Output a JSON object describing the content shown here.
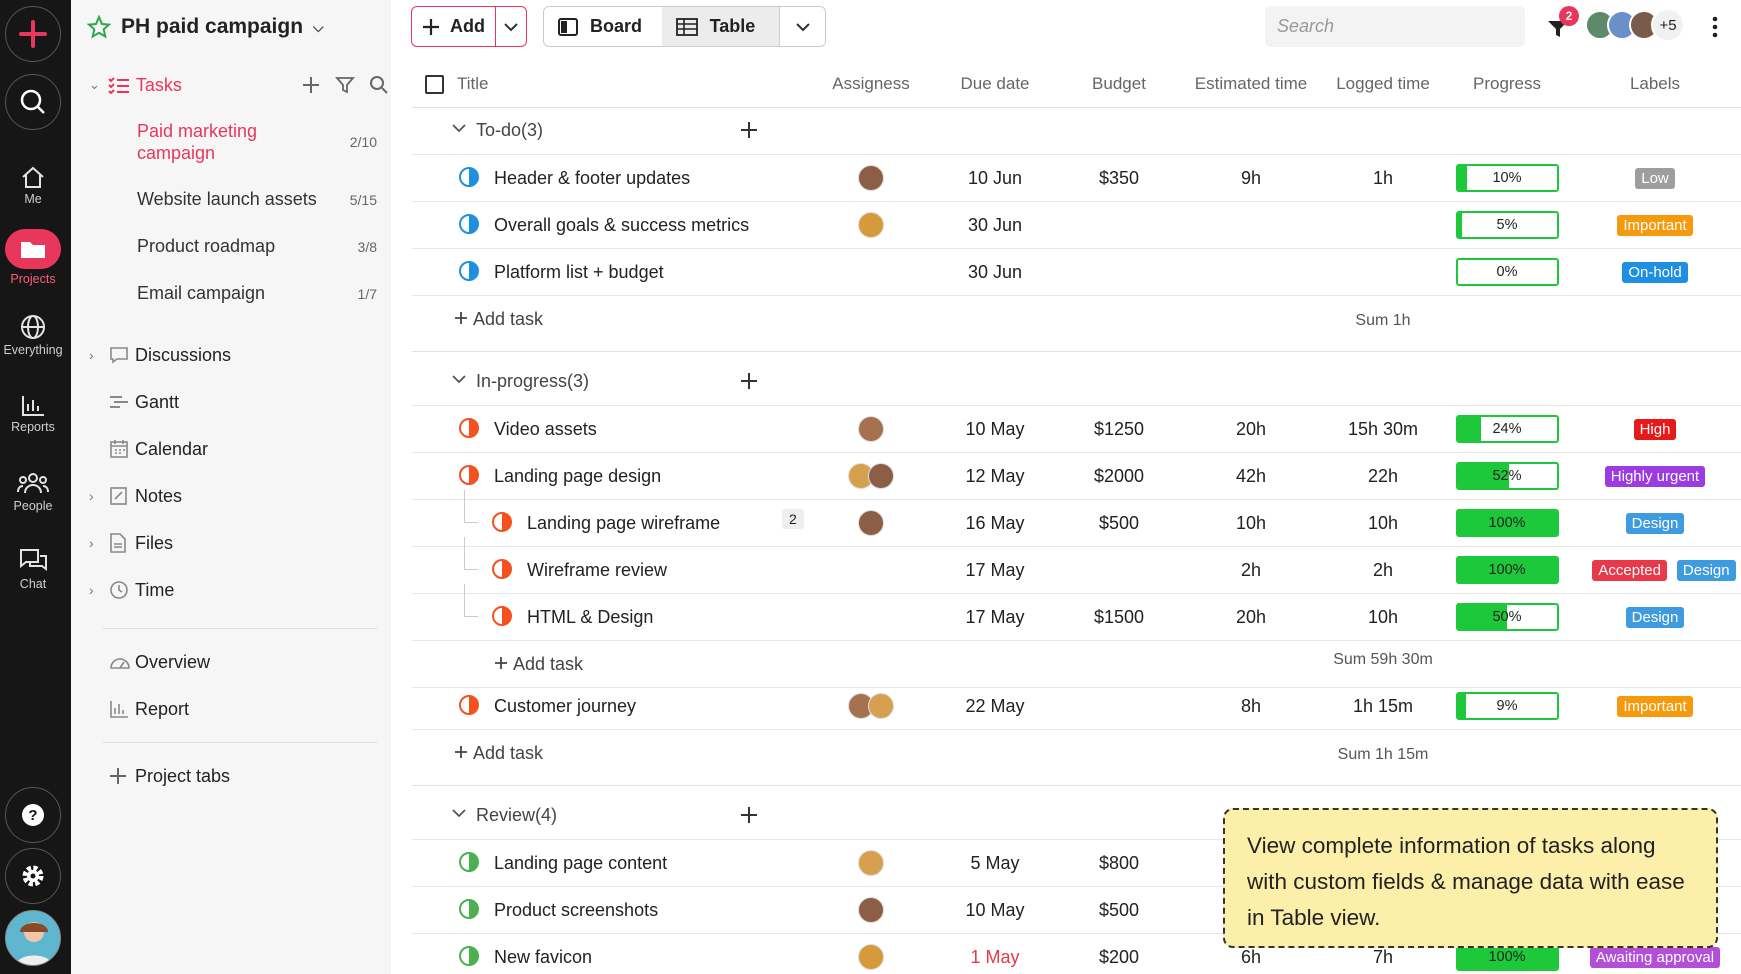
{
  "rail": {
    "me": "Me",
    "projects": "Projects",
    "everything": "Everything",
    "reports": "Reports",
    "people": "People",
    "chat": "Chat"
  },
  "sidebar": {
    "project_title": "PH paid campaign",
    "tasks_label": "Tasks",
    "task_lists": [
      {
        "name_line1": "Paid marketing",
        "name_line2": "campaign",
        "count": "2/10"
      },
      {
        "name": "Website launch assets",
        "count": "5/15"
      },
      {
        "name": "Product roadmap",
        "count": "3/8"
      },
      {
        "name": "Email campaign",
        "count": "1/7"
      }
    ],
    "nav": [
      "Discussions",
      "Gantt",
      "Calendar",
      "Notes",
      "Files",
      "Time"
    ],
    "overview": "Overview",
    "report": "Report",
    "project_tabs": "Project tabs"
  },
  "toolbar": {
    "add": "Add",
    "board": "Board",
    "table": "Table",
    "search_placeholder": "Search",
    "filter_badge": "2",
    "more_people": "+5"
  },
  "columns": [
    "Title",
    "Assigness",
    "Due date",
    "Budget",
    "Estimated time",
    "Logged time",
    "Progress",
    "Labels"
  ],
  "groups": [
    {
      "name": "To-do(3)",
      "sum": "Sum 1h",
      "add": "Add task",
      "tasks": [
        {
          "title": "Header & footer updates",
          "due": "10 Jun",
          "budget": "$350",
          "est": "9h",
          "logged": "1h",
          "progress": "10%",
          "pv": 10,
          "labels": [
            {
              "t": "Low",
              "c": "#9e9e9e"
            }
          ]
        },
        {
          "title": "Overall goals & success metrics",
          "due": "30 Jun",
          "budget": "",
          "est": "",
          "logged": "",
          "progress": "5%",
          "pv": 5,
          "labels": [
            {
              "t": "Important",
              "c": "#f59a0c"
            }
          ]
        },
        {
          "title": "Platform list + budget",
          "due": "30 Jun",
          "budget": "",
          "est": "",
          "logged": "",
          "progress": "0%",
          "pv": 0,
          "labels": [
            {
              "t": "On-hold",
              "c": "#1e8fe1"
            }
          ]
        }
      ]
    },
    {
      "name": "In-progress(3)",
      "sum": "Sum 59h 30m",
      "add": "Add task",
      "tasks": [
        {
          "title": "Video assets",
          "due": "10 May",
          "budget": "$1250",
          "est": "20h",
          "logged": "15h 30m",
          "progress": "24%",
          "pv": 24,
          "labels": [
            {
              "t": "High",
              "c": "#e81919"
            }
          ]
        },
        {
          "title": "Landing page design",
          "due": "12 May",
          "budget": "$2000",
          "est": "42h",
          "logged": "22h",
          "progress": "52%",
          "pv": 52,
          "labels": [
            {
              "t": "Highly urgent",
              "c": "#9c3ce0"
            }
          ]
        },
        {
          "title": "Landing page wireframe",
          "sub": true,
          "badge": "2",
          "due": "16 May",
          "budget": "$500",
          "est": "10h",
          "logged": "10h",
          "progress": "100%",
          "pv": 100,
          "labels": [
            {
              "t": "Design",
              "c": "#3e9be0"
            }
          ]
        },
        {
          "title": "Wireframe review",
          "sub": true,
          "due": "17 May",
          "budget": "",
          "est": "2h",
          "logged": "2h",
          "progress": "100%",
          "pv": 100,
          "labels": [
            {
              "t": "Accepted",
              "c": "#e8394a"
            },
            {
              "t": "Design",
              "c": "#3e9be0"
            }
          ]
        },
        {
          "title": "HTML & Design",
          "sub": true,
          "due": "17 May",
          "budget": "$1500",
          "est": "20h",
          "logged": "10h",
          "progress": "50%",
          "pv": 50,
          "labels": [
            {
              "t": "Design",
              "c": "#3e9be0"
            }
          ]
        },
        {
          "title": "Customer journey",
          "due": "22 May",
          "budget": "",
          "est": "8h",
          "logged": "1h 15m",
          "progress": "9%",
          "pv": 9,
          "labels": [
            {
              "t": "Important",
              "c": "#f59a0c"
            }
          ]
        }
      ],
      "sum2": "Sum 1h 15m"
    },
    {
      "name": "Review(4)",
      "tasks": [
        {
          "title": "Landing page content",
          "due": "5 May",
          "budget": "$800"
        },
        {
          "title": "Product screenshots",
          "due": "10 May",
          "budget": "$500"
        },
        {
          "title": "New favicon",
          "due": "1 May",
          "budget": "$200",
          "est": "6h",
          "logged": "7h",
          "progress": "100%",
          "pv": 100,
          "labels": [
            {
              "t": "Awaiting approval",
              "c": "#b24fd6"
            }
          ]
        }
      ]
    }
  ],
  "tooltip": "View complete information of tasks along with custom fields & manage data with ease in Table view.",
  "colors": {
    "accent": "#e8365d",
    "progress": "#1dc93a",
    "todo": "#1e8fe1",
    "inprogress": "#f4511e",
    "review": "#4caf50"
  }
}
